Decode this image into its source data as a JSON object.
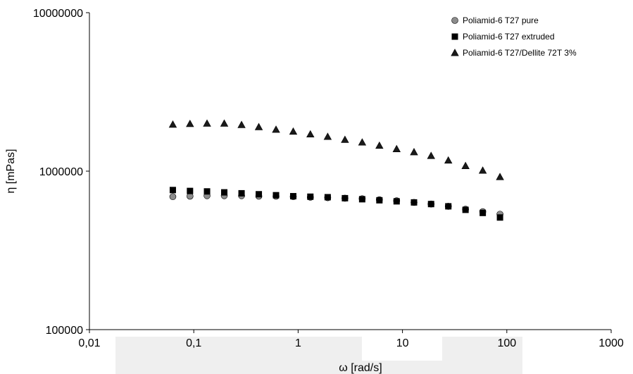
{
  "chart_data": {
    "type": "scatter",
    "xlabel": "ω [rad/s]",
    "ylabel": "η [mPas]",
    "x_scale": "log",
    "y_scale": "log",
    "xlim": [
      0.01,
      1000
    ],
    "ylim": [
      100000,
      10000000
    ],
    "x_ticks": [
      "0,01",
      "0,1",
      "1",
      "10",
      "100",
      "1000"
    ],
    "x_tick_values": [
      0.01,
      0.1,
      1,
      10,
      100,
      1000
    ],
    "y_ticks": [
      "100000",
      "1000000",
      "10000000"
    ],
    "y_tick_values": [
      100000,
      1000000,
      10000000
    ],
    "grid": false,
    "legend_position": "top-right",
    "x": [
      0.063,
      0.092,
      0.134,
      0.196,
      0.287,
      0.42,
      0.614,
      0.898,
      1.31,
      1.92,
      2.81,
      4.11,
      6.01,
      8.79,
      12.9,
      18.8,
      27.5,
      40.2,
      58.8,
      86.0
    ],
    "series": [
      {
        "name": "Poliamid-6 T27 pure",
        "marker": "circle",
        "color": "#8c8c8c",
        "values": [
          690000,
          695000,
          700000,
          700000,
          700000,
          695000,
          695000,
          690000,
          685000,
          680000,
          675000,
          670000,
          660000,
          650000,
          635000,
          620000,
          600000,
          575000,
          555000,
          535000
        ]
      },
      {
        "name": "Poliamid-6 T27 extruded",
        "marker": "square",
        "color": "#000000",
        "values": [
          760000,
          750000,
          745000,
          735000,
          725000,
          715000,
          705000,
          695000,
          690000,
          685000,
          675000,
          665000,
          655000,
          645000,
          635000,
          620000,
          600000,
          570000,
          545000,
          510000
        ]
      },
      {
        "name": "Poliamid-6 T27/Dellite 72T 3%",
        "marker": "triangle",
        "color": "#000000",
        "values": [
          1970000,
          1990000,
          2000000,
          2000000,
          1960000,
          1900000,
          1830000,
          1780000,
          1710000,
          1650000,
          1580000,
          1520000,
          1450000,
          1380000,
          1320000,
          1250000,
          1170000,
          1080000,
          1010000,
          920000
        ]
      }
    ]
  }
}
